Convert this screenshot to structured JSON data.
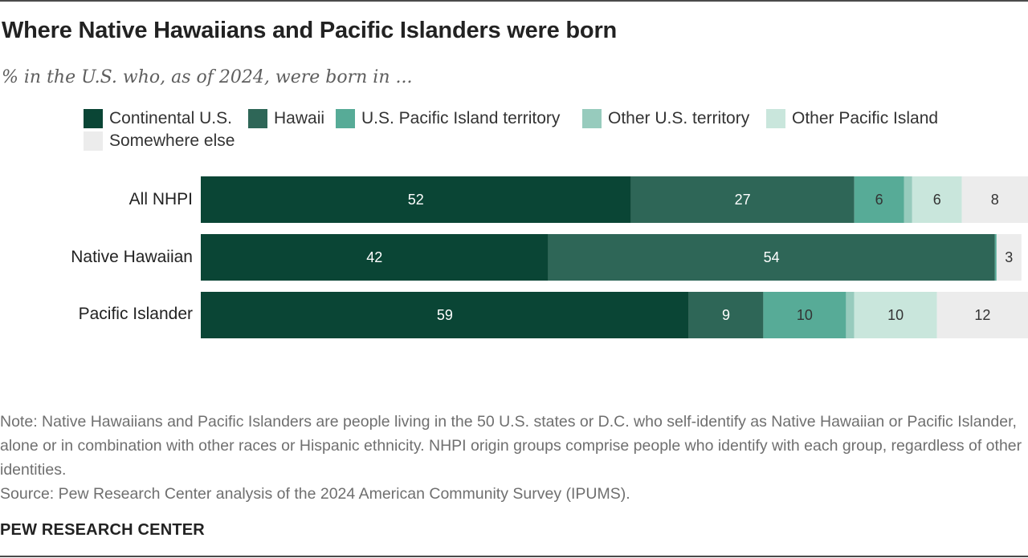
{
  "header": {
    "title": "Where Native Hawaiians and Pacific Islanders were born",
    "subtitle": "% in the U.S. who, as of 2024, were born in ..."
  },
  "legend": [
    {
      "label": "Continental U.S.",
      "color": "#0a4535"
    },
    {
      "label": "Hawaii",
      "color": "#2e6657"
    },
    {
      "label": "U.S. Pacific Island territory",
      "color": "#57ab97"
    },
    {
      "label": "Other U.S. territory",
      "color": "#97cbbd"
    },
    {
      "label": "Other Pacific Island",
      "color": "#c9e6dc"
    },
    {
      "label": "Somewhere else",
      "color": "#ececec"
    }
  ],
  "chart_data": {
    "type": "bar",
    "orientation": "horizontal",
    "stacked": true,
    "categories": [
      "All NHPI",
      "Native Hawaiian",
      "Pacific Islander"
    ],
    "series": [
      {
        "name": "Continental U.S.",
        "values": [
          52,
          42,
          59
        ],
        "labels": [
          "52",
          "42",
          "59"
        ]
      },
      {
        "name": "Hawaii",
        "values": [
          27,
          54,
          9
        ],
        "labels": [
          "27",
          "54",
          "9"
        ]
      },
      {
        "name": "U.S. Pacific Island territory",
        "values": [
          6,
          0.2,
          10
        ],
        "labels": [
          "6",
          "",
          "10"
        ]
      },
      {
        "name": "Other U.S. territory",
        "values": [
          1,
          0,
          1
        ],
        "labels": [
          "",
          "",
          ""
        ]
      },
      {
        "name": "Other Pacific Island",
        "values": [
          6,
          0,
          10
        ],
        "labels": [
          "6",
          "",
          "10"
        ]
      },
      {
        "name": "Somewhere else",
        "values": [
          8,
          3,
          12
        ],
        "labels": [
          "8",
          "3",
          "12"
        ]
      }
    ],
    "xlim": [
      0,
      100
    ],
    "label_colors": {
      "dark": "#ffffff",
      "light": "#333333"
    }
  },
  "footer": {
    "note": "Note: Native Hawaiians and Pacific Islanders are people living in the 50 U.S. states or D.C. who self-identify as Native Hawaiian or Pacific Islander, alone or in combination with other races or Hispanic ethnicity. NHPI origin groups comprise people who identify with each group, regardless of other identities.",
    "source": "Source: Pew Research Center analysis of the 2024 American Community Survey (IPUMS).",
    "brand": "PEW RESEARCH CENTER"
  }
}
